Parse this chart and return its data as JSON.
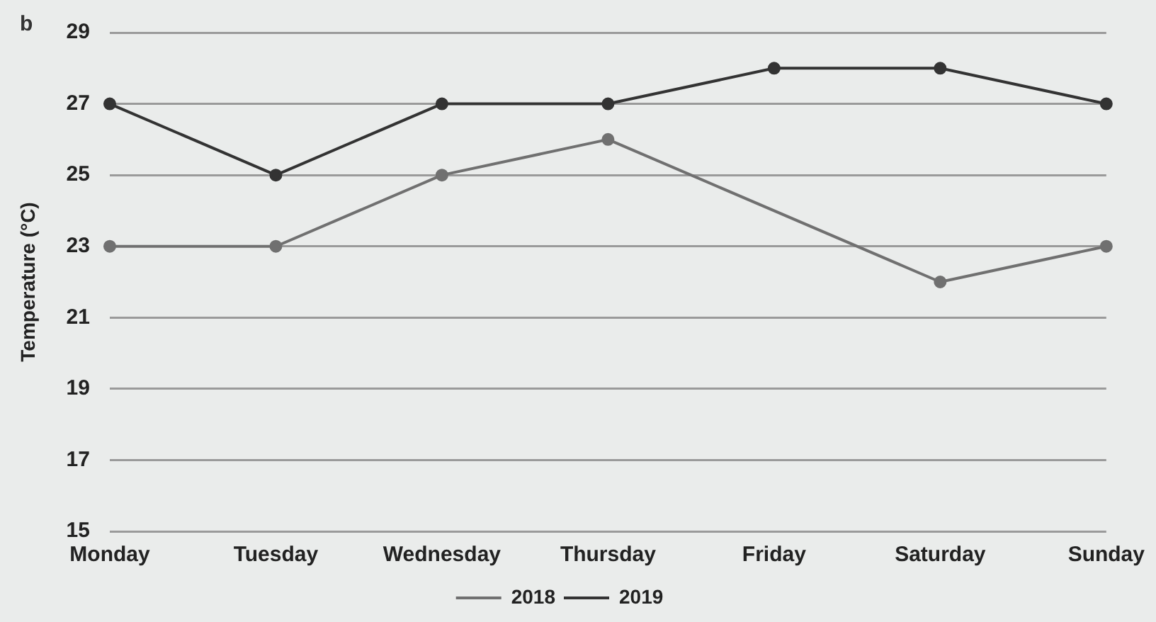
{
  "chart_data": {
    "type": "line",
    "ylabel": "Temperature (°C)",
    "annotations": [
      "b"
    ],
    "categories": [
      "Monday",
      "Tuesday",
      "Wednesday",
      "Thursday",
      "Friday",
      "Saturday",
      "Sunday"
    ],
    "series": [
      {
        "name": "2018",
        "color": "#707070",
        "values": [
          23,
          23,
          25,
          26,
          null,
          22,
          23
        ]
      },
      {
        "name": "2019",
        "color": "#333333",
        "values": [
          27,
          25,
          27,
          27,
          28,
          28,
          27
        ]
      }
    ],
    "ylim": [
      15,
      29
    ],
    "yticks": [
      15,
      17,
      19,
      21,
      23,
      25,
      27,
      29
    ],
    "grid": "y",
    "legend": "bottom",
    "marker": "circle",
    "line_style": "solid"
  }
}
